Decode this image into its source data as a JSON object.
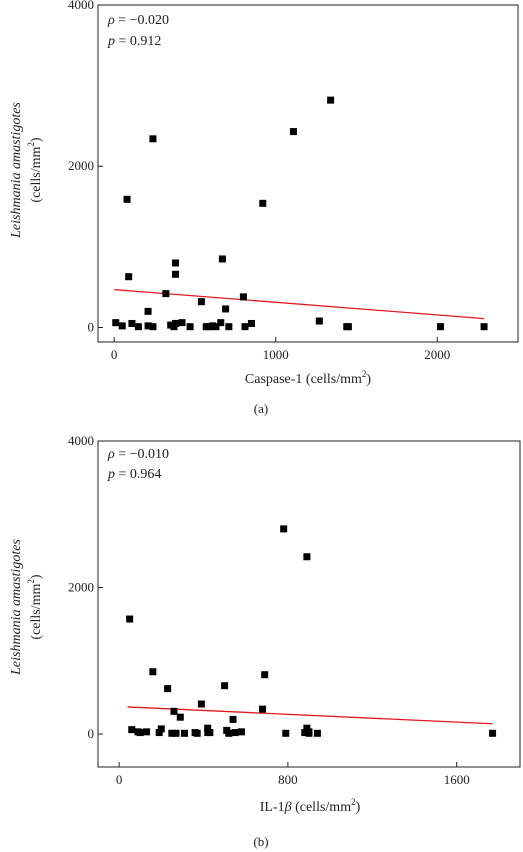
{
  "chart_data": [
    {
      "type": "scatter",
      "panel_label": "(a)",
      "title": "",
      "xlabel_main": "Caspase-1 (cells/mm",
      "xlabel_sup": "2",
      "xlabel_tail": ")",
      "ylabel_italic": "Leishmania amastigotes",
      "ylabel_unit_main": "(cells/mm",
      "ylabel_unit_sup": "2",
      "ylabel_unit_tail": ")",
      "stat_rho_symbol": "ρ",
      "stat_rho_value": " = −0.020",
      "stat_p_symbol": "p",
      "stat_p_value": " = 0.912",
      "xlim": [
        -100,
        2500
      ],
      "ylim": [
        -180,
        4000
      ],
      "xticks": [
        0,
        1000,
        2000
      ],
      "yticks": [
        0,
        2000,
        4000
      ],
      "x": [
        10,
        50,
        80,
        90,
        110,
        150,
        210,
        210,
        240,
        240,
        320,
        350,
        370,
        380,
        380,
        380,
        420,
        470,
        540,
        570,
        590,
        610,
        630,
        660,
        670,
        690,
        710,
        800,
        810,
        850,
        920,
        1110,
        1270,
        1340,
        1440,
        1450,
        2020,
        2290
      ],
      "y": [
        60,
        20,
        1590,
        630,
        50,
        10,
        200,
        20,
        2340,
        10,
        420,
        30,
        10,
        660,
        800,
        50,
        60,
        10,
        320,
        10,
        10,
        20,
        10,
        60,
        850,
        230,
        10,
        380,
        10,
        50,
        1540,
        2430,
        80,
        2820,
        10,
        10,
        10,
        10
      ],
      "fit_line": {
        "x": [
          0,
          2290
        ],
        "y": [
          470,
          110
        ]
      },
      "point_color": "#000000",
      "fit_color": "#e31a1c"
    },
    {
      "type": "scatter",
      "panel_label": "(b)",
      "title": "",
      "xlabel_main": "IL-1",
      "xlabel_beta": "β",
      "xlabel_rest": " (cells/mm",
      "xlabel_sup": "2",
      "xlabel_tail": ")",
      "ylabel_italic": "Leishmania amastigotes",
      "ylabel_unit_main": "(cells/mm",
      "ylabel_unit_sup": "2",
      "ylabel_unit_tail": ")",
      "stat_rho_symbol": "ρ",
      "stat_rho_value": " = −0.010",
      "stat_p_symbol": "p",
      "stat_p_value": " = 0.964",
      "xlim": [
        -100,
        1900
      ],
      "ylim": [
        -450,
        4000
      ],
      "xticks": [
        0,
        800,
        1600
      ],
      "yticks": [
        0,
        2000,
        4000
      ],
      "x": [
        50,
        60,
        90,
        100,
        130,
        160,
        190,
        200,
        230,
        250,
        260,
        270,
        290,
        310,
        360,
        370,
        390,
        420,
        420,
        430,
        500,
        510,
        520,
        540,
        550,
        580,
        680,
        690,
        780,
        790,
        880,
        890,
        890,
        900,
        900,
        940,
        1770
      ],
      "y": [
        1570,
        60,
        30,
        20,
        30,
        850,
        20,
        70,
        620,
        10,
        310,
        10,
        230,
        10,
        20,
        10,
        410,
        20,
        80,
        20,
        660,
        50,
        10,
        200,
        20,
        30,
        340,
        810,
        2800,
        10,
        20,
        80,
        2420,
        30,
        10,
        10,
        10
      ],
      "fit_line": {
        "x": [
          40,
          1770
        ],
        "y": [
          370,
          140
        ]
      },
      "point_color": "#000000",
      "fit_color": "#e31a1c"
    }
  ]
}
